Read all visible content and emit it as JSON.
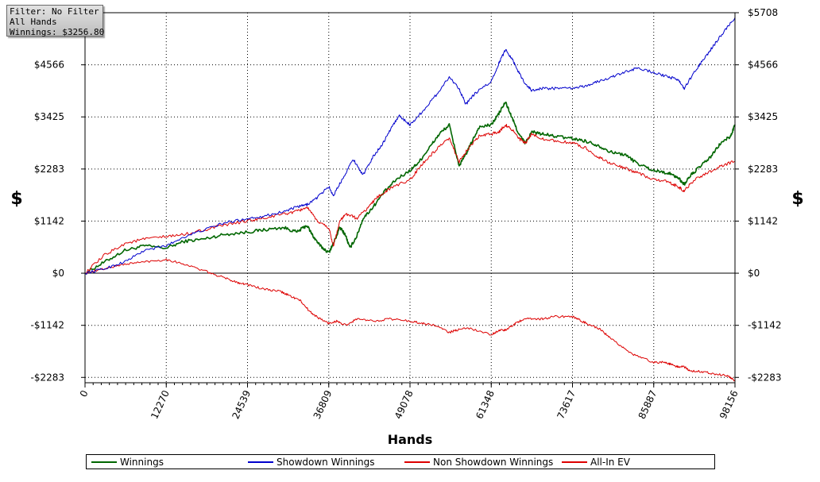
{
  "filter_box": {
    "line1": "Filter: No Filter",
    "line2": "All Hands",
    "line3": "Winnings: $3256.80"
  },
  "chart_data": {
    "type": "line",
    "title": "",
    "xlabel": "Hands",
    "ylabel": "$",
    "ylabel_right": "$",
    "xlim": [
      0,
      98156
    ],
    "ylim": [
      -2400,
      5708
    ],
    "x_ticks": [
      0,
      12270,
      24539,
      36809,
      49078,
      61348,
      73617,
      85887,
      98156
    ],
    "x_tick_labels": [
      "0",
      "12270",
      "24539",
      "36809",
      "49078",
      "61348",
      "73617",
      "85887",
      "98156"
    ],
    "y_ticks": [
      -2283,
      -1142,
      0,
      1142,
      2283,
      3425,
      4566
    ],
    "y_tick_labels_left": [
      "-$2283",
      "-$1142",
      "$0",
      "$1142",
      "$2283",
      "$3425",
      "$4566"
    ],
    "y_ticks_right": [
      -2283,
      -1142,
      0,
      1142,
      2283,
      3425,
      4566,
      5708
    ],
    "y_tick_labels_right": [
      "-$2283",
      "-$1142",
      "$0",
      "$1142",
      "$2283",
      "$3425",
      "$4566",
      "$5708"
    ],
    "grid": true,
    "legend_position": "bottom",
    "series": [
      {
        "name": "Winnings",
        "color": "#006600",
        "x": [
          0,
          3000,
          6000,
          9000,
          12270,
          15000,
          18000,
          21000,
          24539,
          27000,
          30000,
          32000,
          33500,
          34500,
          35500,
          36809,
          37500,
          38500,
          39300,
          40000,
          41000,
          42000,
          43500,
          45000,
          47000,
          49078,
          50500,
          52000,
          53500,
          55000,
          56500,
          57500,
          58500,
          59500,
          61348,
          62500,
          63500,
          64500,
          65500,
          66500,
          67500,
          69000,
          71000,
          73617,
          75500,
          77500,
          79500,
          81500,
          83500,
          85887,
          88000,
          89500,
          90500,
          91500,
          93000,
          94500,
          96000,
          97500,
          98156
        ],
        "y": [
          0,
          250,
          500,
          600,
          550,
          700,
          750,
          850,
          900,
          950,
          1000,
          900,
          1050,
          800,
          600,
          450,
          650,
          1000,
          850,
          550,
          800,
          1200,
          1450,
          1750,
          2050,
          2250,
          2450,
          2750,
          3050,
          3250,
          2350,
          2600,
          2900,
          3200,
          3250,
          3500,
          3750,
          3400,
          3050,
          2850,
          3100,
          3050,
          3000,
          2950,
          2900,
          2800,
          2650,
          2600,
          2400,
          2250,
          2200,
          2100,
          1950,
          2150,
          2350,
          2550,
          2850,
          3000,
          3257
        ]
      },
      {
        "name": "Showdown Winnings",
        "color": "#0000cc",
        "x": [
          0,
          3000,
          6000,
          9000,
          12270,
          15000,
          18000,
          21000,
          24539,
          27000,
          30000,
          32000,
          33500,
          35000,
          36809,
          37500,
          39000,
          40500,
          42000,
          43500,
          45000,
          46500,
          47500,
          49078,
          51000,
          53000,
          55000,
          56500,
          57500,
          59000,
          61348,
          62500,
          63500,
          64500,
          65500,
          66500,
          67500,
          69000,
          71000,
          73617,
          75500,
          77500,
          79500,
          81500,
          83500,
          85887,
          88000,
          89500,
          90500,
          92000,
          93500,
          95000,
          96500,
          98156
        ],
        "y": [
          0,
          100,
          250,
          500,
          600,
          800,
          950,
          1100,
          1200,
          1250,
          1350,
          1450,
          1500,
          1650,
          1900,
          1700,
          2100,
          2500,
          2150,
          2550,
          2850,
          3250,
          3450,
          3250,
          3550,
          3900,
          4300,
          4050,
          3700,
          3950,
          4200,
          4600,
          4900,
          4700,
          4400,
          4150,
          4000,
          4050,
          4050,
          4050,
          4100,
          4200,
          4300,
          4400,
          4500,
          4400,
          4300,
          4250,
          4050,
          4400,
          4700,
          5000,
          5300,
          5600
        ]
      },
      {
        "name": "Non Showdown Winnings",
        "color": "#dd0000",
        "x": [
          0,
          3000,
          6000,
          9000,
          12270,
          15000,
          18000,
          21000,
          23000,
          24539,
          27000,
          29500,
          31000,
          32500,
          34000,
          35500,
          36809,
          38000,
          39500,
          41000,
          43500,
          46000,
          49078,
          51000,
          53000,
          55000,
          56000,
          58000,
          61348,
          62500,
          63500,
          64500,
          65500,
          67000,
          69000,
          71000,
          73617,
          75000,
          76500,
          78000,
          79500,
          81000,
          83000,
          85887,
          87500,
          88500,
          89500,
          90500,
          91500,
          93000,
          95000,
          97000,
          98156
        ],
        "y": [
          0,
          100,
          200,
          250,
          300,
          200,
          50,
          -100,
          -200,
          -250,
          -350,
          -400,
          -500,
          -600,
          -850,
          -1000,
          -1100,
          -1050,
          -1150,
          -1000,
          -1050,
          -1000,
          -1050,
          -1100,
          -1150,
          -1300,
          -1250,
          -1200,
          -1350,
          -1250,
          -1250,
          -1150,
          -1050,
          -1000,
          -1000,
          -950,
          -950,
          -1050,
          -1150,
          -1250,
          -1450,
          -1600,
          -1800,
          -1950,
          -1950,
          -2000,
          -2050,
          -2050,
          -2150,
          -2150,
          -2200,
          -2250,
          -2350
        ]
      },
      {
        "name": "All-In EV",
        "color": "#dd0000",
        "x": [
          0,
          3000,
          6000,
          9000,
          12270,
          15000,
          18000,
          21000,
          24539,
          27000,
          30000,
          32000,
          33500,
          35000,
          36809,
          37500,
          38500,
          39500,
          41000,
          42500,
          44000,
          46000,
          49078,
          51000,
          53000,
          55000,
          56500,
          58000,
          59500,
          61348,
          62500,
          63500,
          64500,
          65500,
          66500,
          67500,
          69000,
          71000,
          73617,
          75500,
          77500,
          79500,
          81500,
          83500,
          85887,
          88000,
          89500,
          90500,
          92000,
          94000,
          96000,
          98156
        ],
        "y": [
          0,
          400,
          650,
          750,
          800,
          850,
          950,
          1050,
          1150,
          1200,
          1300,
          1350,
          1450,
          1150,
          1000,
          600,
          1150,
          1300,
          1200,
          1400,
          1650,
          1850,
          2050,
          2400,
          2700,
          2950,
          2450,
          2750,
          3000,
          3050,
          3100,
          3250,
          3150,
          2950,
          2850,
          3050,
          2950,
          2900,
          2850,
          2750,
          2550,
          2400,
          2300,
          2200,
          2050,
          2000,
          1900,
          1800,
          2050,
          2200,
          2350,
          2450
        ]
      }
    ]
  }
}
